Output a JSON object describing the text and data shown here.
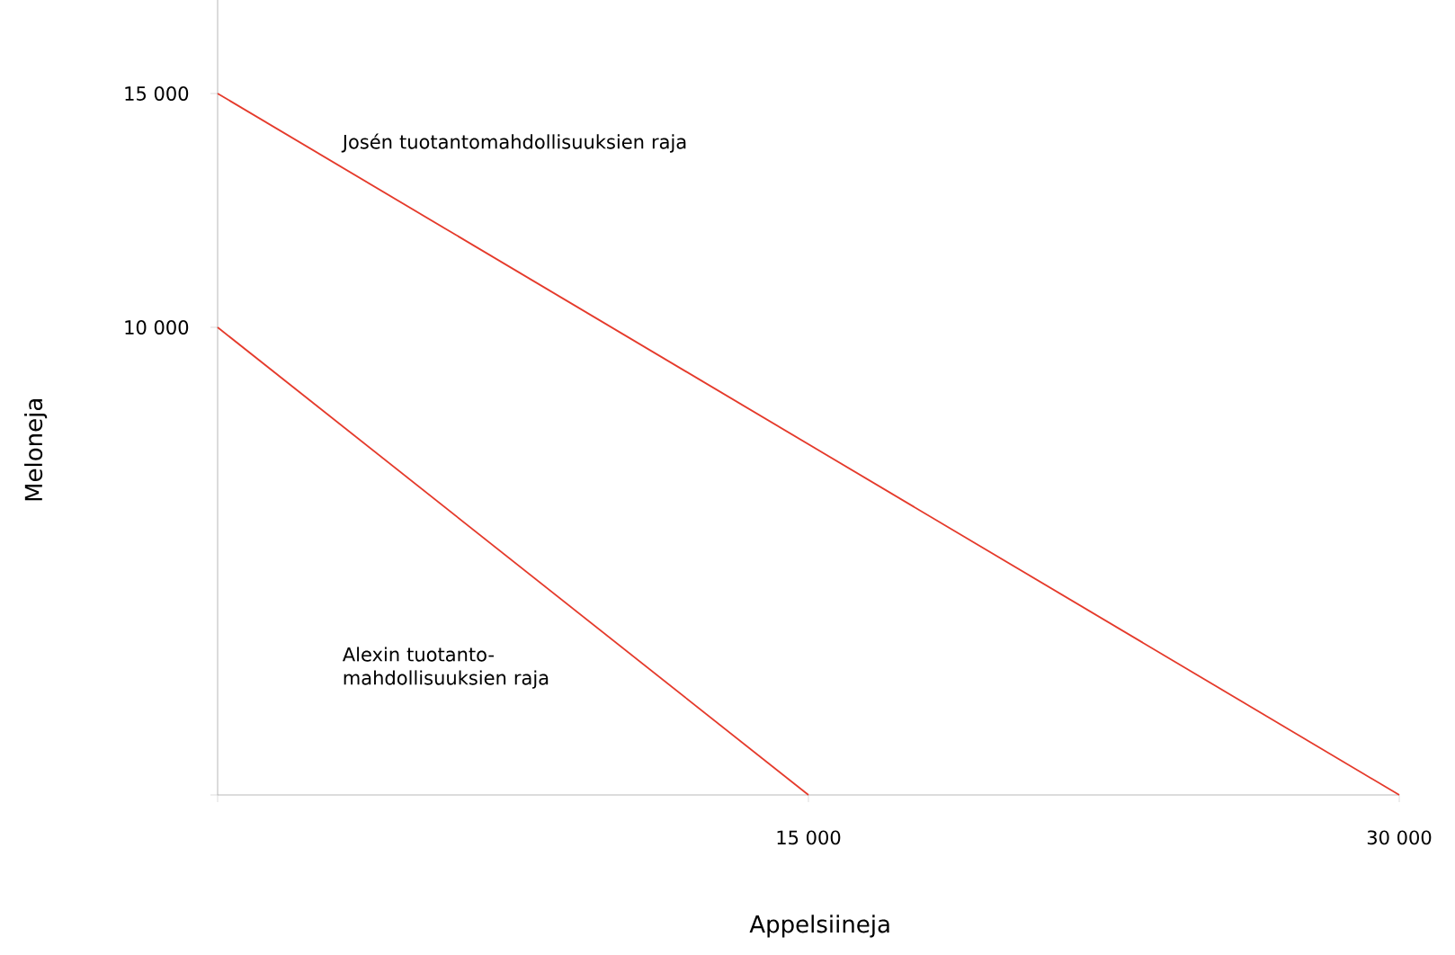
{
  "chart_data": {
    "type": "line",
    "xlabel": "Appelsiineja",
    "ylabel": "Meloneja",
    "series": [
      {
        "name": "Josén tuotantomahdollisuuksien raja",
        "color": "#e53a2b",
        "x": [
          0,
          30000
        ],
        "values": [
          15000,
          0
        ]
      },
      {
        "name": "Alexin tuotanto- mahdollisuuksien raja",
        "color": "#e53a2b",
        "x": [
          0,
          15000
        ],
        "values": [
          10000,
          0
        ]
      }
    ],
    "xlim": [
      0,
      30000
    ],
    "ylim": [
      0,
      17000
    ],
    "xticks": [
      {
        "value": 0,
        "label": null
      },
      {
        "value": 15000,
        "label": "15 000"
      },
      {
        "value": 30000,
        "label": "30 000"
      }
    ],
    "yticks": [
      {
        "value": 0,
        "label": null
      },
      {
        "value": 10000,
        "label": "10 000"
      },
      {
        "value": 15000,
        "label": "15 000"
      }
    ],
    "grid": false
  }
}
